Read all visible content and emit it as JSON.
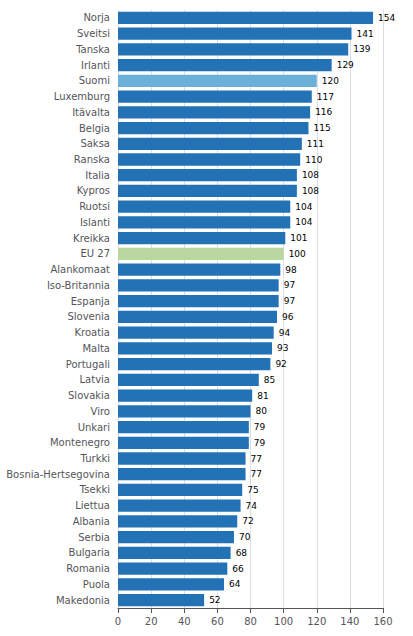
{
  "chart_data": {
    "type": "bar",
    "orientation": "horizontal",
    "categories": [
      "Norja",
      "Sveitsi",
      "Tanska",
      "Irlanti",
      "Suomi",
      "Luxemburg",
      "Itävalta",
      "Belgia",
      "Saksa",
      "Ranska",
      "Italia",
      "Kypros",
      "Ruotsi",
      "Islanti",
      "Kreikka",
      "EU 27",
      "Alankomaat",
      "Iso-Britannia",
      "Espanja",
      "Slovenia",
      "Kroatia",
      "Malta",
      "Portugali",
      "Latvia",
      "Slovakia",
      "Viro",
      "Unkari",
      "Montenegro",
      "Turkki",
      "Bosnia-Hertsegovina",
      "Tsekki",
      "Liettua",
      "Albania",
      "Serbia",
      "Bulgaria",
      "Romania",
      "Puola",
      "Makedonia"
    ],
    "values": [
      154,
      141,
      139,
      129,
      120,
      117,
      116,
      115,
      111,
      110,
      108,
      108,
      104,
      104,
      101,
      100,
      98,
      97,
      97,
      96,
      94,
      93,
      92,
      85,
      81,
      80,
      79,
      79,
      77,
      77,
      75,
      74,
      72,
      70,
      68,
      66,
      64,
      52
    ],
    "colors": [
      "#2272b5",
      "#2272b5",
      "#2272b5",
      "#2272b5",
      "#6ab0d8",
      "#2272b5",
      "#2272b5",
      "#2272b5",
      "#2272b5",
      "#2272b5",
      "#2272b5",
      "#2272b5",
      "#2272b5",
      "#2272b5",
      "#2272b5",
      "#b8d8a0",
      "#2272b5",
      "#2272b5",
      "#2272b5",
      "#2272b5",
      "#2272b5",
      "#2272b5",
      "#2272b5",
      "#2272b5",
      "#2272b5",
      "#2272b5",
      "#2272b5",
      "#2272b5",
      "#2272b5",
      "#2272b5",
      "#2272b5",
      "#2272b5",
      "#2272b5",
      "#2272b5",
      "#2272b5",
      "#2272b5",
      "#2272b5",
      "#2272b5"
    ],
    "xlim": [
      0,
      160
    ],
    "xticks": [
      0,
      20,
      40,
      60,
      80,
      100,
      120,
      140,
      160
    ],
    "grid": true,
    "data_labels": true
  }
}
